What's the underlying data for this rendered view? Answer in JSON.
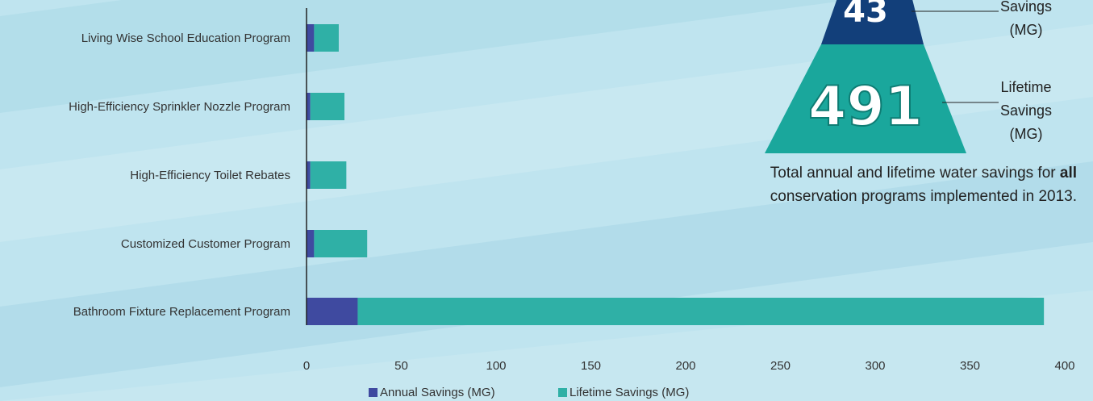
{
  "chart_data": {
    "type": "bar",
    "orientation": "horizontal",
    "stacked": true,
    "categories": [
      "Living Wise School Education Program",
      "High-Efficiency Sprinkler Nozzle Program",
      "High-Efficiency Toilet Rebates",
      "Customized Customer Program",
      "Bathroom Fixture Replacement Program"
    ],
    "series": [
      {
        "name": "Annual Savings (MG)",
        "color": "#3f4aa0",
        "values": [
          4,
          2,
          2,
          4,
          27
        ]
      },
      {
        "name": "Lifetime Savings (MG)",
        "color": "#2fb0a6",
        "values": [
          13,
          18,
          19,
          28,
          362
        ]
      }
    ],
    "xlim": [
      0,
      400
    ],
    "xticks": [
      "0",
      "50",
      "100",
      "150",
      "200",
      "250",
      "300",
      "350",
      "400"
    ],
    "grid": false,
    "legend_position": "bottom"
  },
  "pyramid": {
    "annual_value": "43",
    "annual_label_lines": [
      "Savings",
      "(MG)"
    ],
    "annual_color": "#123f7a",
    "lifetime_value": "491",
    "lifetime_label_lines": [
      "Lifetime",
      "Savings",
      "(MG)"
    ],
    "lifetime_color": "#1aa79c"
  },
  "summary": {
    "text_before": "Total annual and lifetime water savings for ",
    "bold": "all",
    "text_line2": "conservation programs implemented in 2013."
  }
}
